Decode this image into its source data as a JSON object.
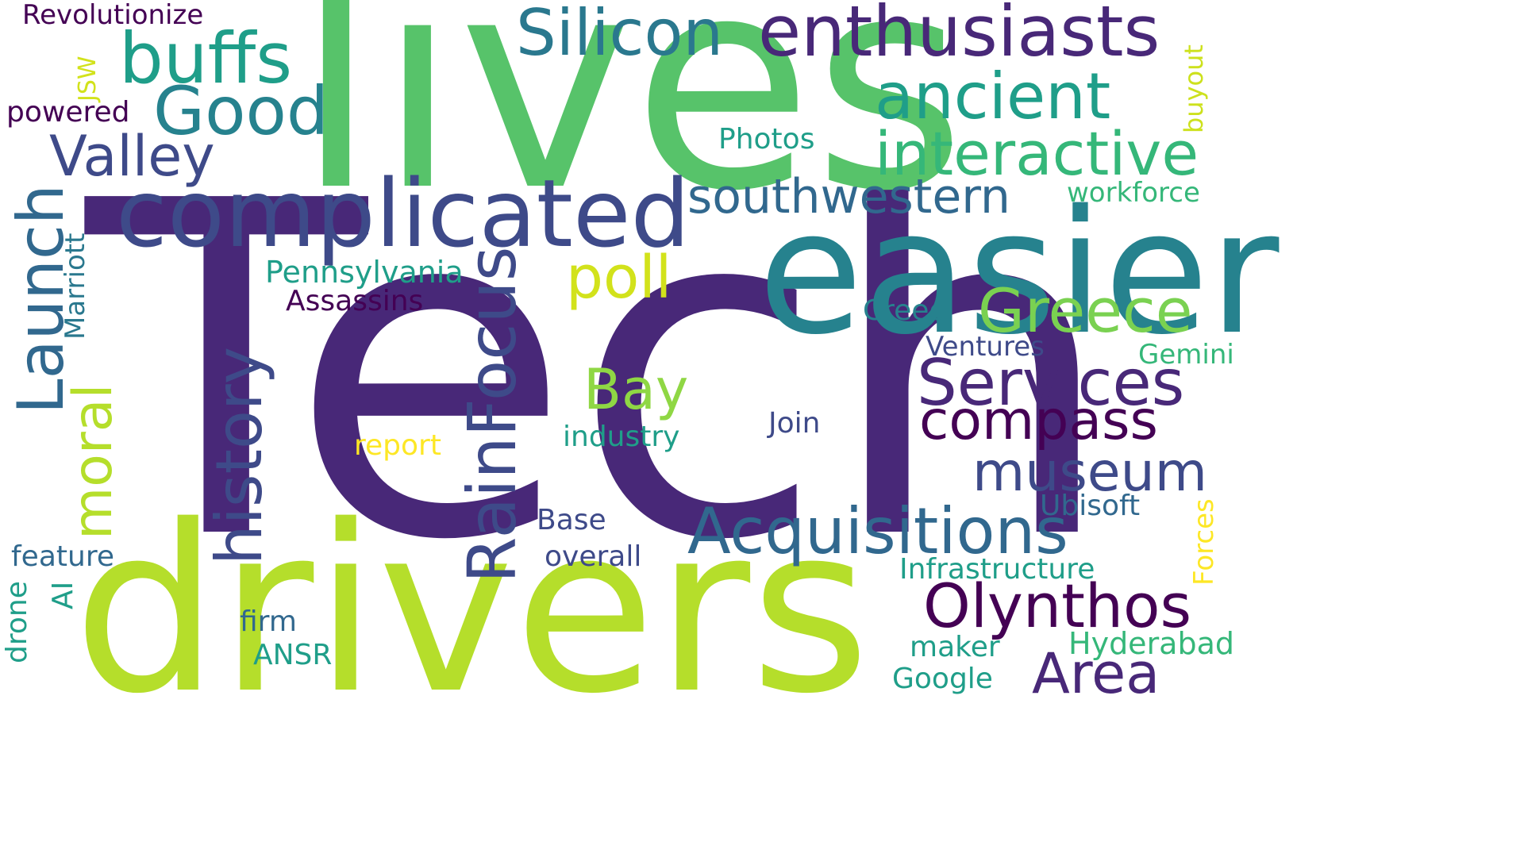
{
  "words": {
    "tech": "Tech",
    "lives": "lives",
    "drivers": "drivers",
    "easier": "easier",
    "complicated": "complicated",
    "enthusiasts": "enthusiasts",
    "silicon": "Silicon",
    "buffs": "buffs",
    "good": "Good",
    "valley": "Valley",
    "ancient": "ancient",
    "interactive": "interactive",
    "southwestern": "southwestern",
    "revolutionize": "Revolutionize",
    "powered": "powered",
    "jsw": "JSW",
    "buyout": "buyout",
    "photos": "Photos",
    "workforce": "workforce",
    "launch": "Launch",
    "marriott": "Marriott",
    "moral": "moral",
    "history": "history",
    "rainfocus": "RainFocus",
    "pennsylvania": "Pennsylvania",
    "assassins": "Assassins",
    "poll": "poll",
    "greece": "Greece",
    "creed": "Creed",
    "ventures": "Ventures",
    "gemini": "Gemini",
    "services": "Services",
    "compass": "compass",
    "bay": "Bay",
    "join": "Join",
    "industry": "industry",
    "report": "report",
    "museum": "museum",
    "ubisoft": "Ubisoft",
    "acquisitions": "Acquisitions",
    "base": "Base",
    "overall": "overall",
    "feature": "feature",
    "ai": "AI",
    "drone": "drone",
    "firm": "firm",
    "ansr": "ANSR",
    "infrastructure": "Infrastructure",
    "forces": "Forces",
    "olynthos": "Olynthos",
    "maker": "maker",
    "hyderabad": "Hyderabad",
    "area": "Area",
    "google": "Google"
  },
  "colors": {
    "dark_purple": "#440154",
    "indigo": "#482878",
    "slate_blue": "#3e4a89",
    "steel_blue": "#31688e",
    "teal": "#26828e",
    "sea_green": "#1f9e89",
    "green": "#35b779",
    "light_green": "#6ece58",
    "lime": "#b5de2b",
    "yellow": "#fde725"
  }
}
